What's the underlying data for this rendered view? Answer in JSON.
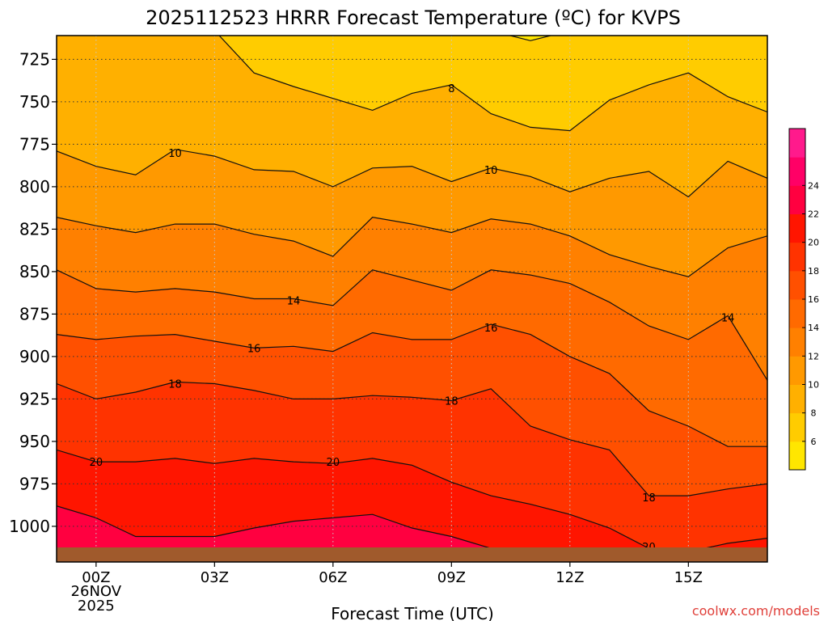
{
  "chart_data": {
    "type": "contour",
    "title": "2025112523 HRRR Forecast Temperature (ºC) for KVPS",
    "xlabel": "Forecast Time (UTC)",
    "ylabel": "",
    "credit": "coolwx.com/models",
    "y_axis": {
      "scale": "pressure (hPa), increasing downward",
      "ticks": [
        725,
        750,
        775,
        800,
        825,
        850,
        875,
        900,
        925,
        950,
        975,
        1000
      ],
      "range": [
        711,
        1021
      ]
    },
    "x_axis": {
      "range_hours": [
        -1,
        17
      ],
      "ticks": [
        {
          "h": 0,
          "label": "00Z",
          "sub": [
            "26NOV",
            "2025"
          ]
        },
        {
          "h": 3,
          "label": "03Z",
          "sub": []
        },
        {
          "h": 6,
          "label": "06Z",
          "sub": []
        },
        {
          "h": 9,
          "label": "09Z",
          "sub": []
        },
        {
          "h": 12,
          "label": "12Z",
          "sub": []
        },
        {
          "h": 15,
          "label": "15Z",
          "sub": []
        }
      ]
    },
    "colorbar": {
      "levels": [
        4,
        6,
        8,
        10,
        12,
        14,
        16,
        18,
        20,
        22,
        24,
        26
      ],
      "labels": [
        "6",
        "8",
        "10",
        "12",
        "14",
        "16",
        "18",
        "20",
        "22",
        "24"
      ],
      "colors": [
        "#FFE600",
        "#FFCC00",
        "#FFB000",
        "#FF9900",
        "#FF8000",
        "#FF6A00",
        "#FF5000",
        "#FF3300",
        "#FF1500",
        "#FF0040",
        "#FF0066",
        "#FF1A8C"
      ]
    },
    "surface_color": "#A05A2C",
    "hours": [
      -1,
      0,
      1,
      2,
      3,
      4,
      5,
      6,
      7,
      8,
      9,
      10,
      11,
      12,
      13,
      14,
      15,
      16,
      17
    ],
    "contours": [
      {
        "level": 8,
        "p": [
          705,
          705,
          705,
          705,
          708,
          733,
          741,
          748,
          755,
          745,
          740,
          757,
          765,
          767,
          749,
          740,
          733,
          747,
          756
        ]
      },
      {
        "level": 10,
        "p": [
          779,
          788,
          793,
          778,
          782,
          790,
          791,
          800,
          789,
          788,
          797,
          789,
          794,
          803,
          795,
          791,
          806,
          785,
          795
        ]
      },
      {
        "level": 12,
        "p": [
          818,
          823,
          827,
          822,
          822,
          828,
          832,
          841,
          818,
          822,
          827,
          819,
          822,
          829,
          840,
          847,
          853,
          836,
          829
        ]
      },
      {
        "level": 14,
        "p": [
          849,
          860,
          862,
          860,
          862,
          866,
          866,
          870,
          849,
          855,
          861,
          849,
          852,
          857,
          868,
          882,
          890,
          876,
          914
        ]
      },
      {
        "level": 16,
        "p": [
          887,
          890,
          888,
          887,
          891,
          895,
          894,
          897,
          886,
          890,
          890,
          881,
          887,
          900,
          910,
          932,
          941,
          953,
          953
        ]
      },
      {
        "level": 18,
        "p": [
          916,
          925,
          921,
          915,
          916,
          920,
          925,
          925,
          923,
          924,
          926,
          919,
          941,
          949,
          955,
          982,
          982,
          978,
          975
        ]
      },
      {
        "level": 20,
        "p": [
          955,
          962,
          962,
          960,
          963,
          960,
          962,
          963,
          960,
          964,
          974,
          982,
          987,
          993,
          1001,
          1013,
          1015,
          1010,
          1007
        ]
      },
      {
        "level": 22,
        "p": [
          988,
          995,
          1006,
          1006,
          1006,
          1001,
          997,
          995,
          993,
          1001,
          1006,
          1013,
          1016,
          1020,
          1022,
          1024,
          1024,
          1024,
          1024
        ]
      }
    ],
    "contour_labels": [
      {
        "text": "8",
        "h": 9.0,
        "p": 742
      },
      {
        "text": "10",
        "h": 2.0,
        "p": 780
      },
      {
        "text": "10",
        "h": 10.0,
        "p": 790
      },
      {
        "text": "14",
        "h": 5.0,
        "p": 867
      },
      {
        "text": "14",
        "h": 16.0,
        "p": 877
      },
      {
        "text": "16",
        "h": 4.0,
        "p": 895
      },
      {
        "text": "16",
        "h": 10.0,
        "p": 883
      },
      {
        "text": "18",
        "h": 2.0,
        "p": 916
      },
      {
        "text": "18",
        "h": 9.0,
        "p": 926
      },
      {
        "text": "18",
        "h": 14.0,
        "p": 983
      },
      {
        "text": "20",
        "h": 0.0,
        "p": 962
      },
      {
        "text": "20",
        "h": 6.0,
        "p": 962
      },
      {
        "text": "20",
        "h": 14.0,
        "p": 1012
      }
    ]
  }
}
